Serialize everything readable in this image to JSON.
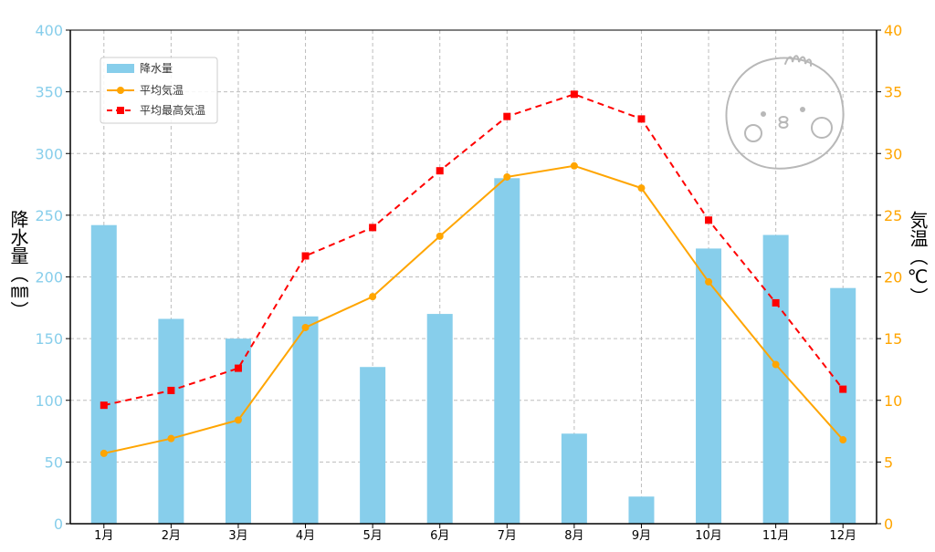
{
  "chart_data": {
    "type": "bar+line",
    "categories": [
      "1月",
      "2月",
      "3月",
      "4月",
      "5月",
      "6月",
      "7月",
      "8月",
      "9月",
      "10月",
      "11月",
      "12月"
    ],
    "series": [
      {
        "name": "降水量",
        "type": "bar",
        "axis": "left",
        "color": "#87ceeb",
        "values": [
          242,
          166,
          150,
          168,
          127,
          170,
          280,
          73,
          22,
          223,
          234,
          191
        ]
      },
      {
        "name": "平均気温",
        "type": "line",
        "axis": "right",
        "color": "#ffa500",
        "values": [
          5.7,
          6.9,
          8.4,
          15.9,
          18.4,
          23.3,
          28.1,
          29.0,
          27.2,
          19.6,
          12.9,
          6.8
        ]
      },
      {
        "name": "平均最高気温",
        "type": "line",
        "axis": "right",
        "color": "#ff0000",
        "dashed": true,
        "values": [
          9.6,
          10.8,
          12.6,
          21.7,
          24.0,
          28.6,
          33.0,
          34.8,
          32.8,
          24.6,
          17.9,
          10.9
        ]
      }
    ],
    "ylabel_left": "降水量（㎜）",
    "ylabel_right": "気温（℃）",
    "ylim_left": [
      0,
      400
    ],
    "ylim_right": [
      0,
      40
    ],
    "yticks_left": [
      0,
      50,
      100,
      150,
      200,
      250,
      300,
      350,
      400
    ],
    "yticks_right": [
      0,
      5,
      10,
      15,
      20,
      25,
      30,
      35,
      40
    ],
    "grid": true,
    "legend": "top-left"
  },
  "decoration": {
    "mascot": "round-face-doodle-icon"
  }
}
